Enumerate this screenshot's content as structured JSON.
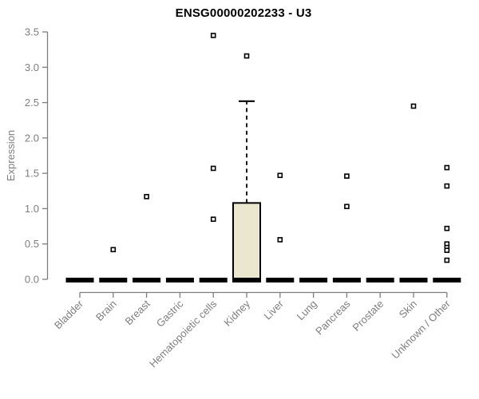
{
  "chart_data": {
    "type": "boxplot",
    "title": "ENSG00000202233 - U3",
    "ylabel": "Expression",
    "ylim": [
      0,
      3.5
    ],
    "yticks": [
      "0.0",
      "0.5",
      "1.0",
      "1.5",
      "2.0",
      "2.5",
      "3.0",
      "3.5"
    ],
    "categories": [
      "Bladder",
      "Brain",
      "Breast",
      "Gastric",
      "Hematopoietic cells",
      "Kidney",
      "Liver",
      "Lung",
      "Pancreas",
      "Prostate",
      "Skin",
      "Unknown / Other"
    ],
    "legend": "none",
    "grid": false,
    "colors": {
      "box_fill": "#EBE6CE",
      "box_border": "#000000",
      "axis": "#7e7e7e",
      "tick_label": "#7e7e7e",
      "title": "#000000",
      "outlier_fill": "#ffffff",
      "outlier_border": "#000000"
    },
    "boxes": [
      {
        "category": "Bladder",
        "q1": 0,
        "median": 0,
        "q3": 0,
        "whisker_low": 0,
        "whisker_high": 0,
        "outliers": []
      },
      {
        "category": "Brain",
        "q1": 0,
        "median": 0,
        "q3": 0,
        "whisker_low": 0,
        "whisker_high": 0,
        "outliers": [
          0.42
        ]
      },
      {
        "category": "Breast",
        "q1": 0,
        "median": 0,
        "q3": 0,
        "whisker_low": 0,
        "whisker_high": 0,
        "outliers": [
          1.17
        ]
      },
      {
        "category": "Gastric",
        "q1": 0,
        "median": 0,
        "q3": 0,
        "whisker_low": 0,
        "whisker_high": 0,
        "outliers": []
      },
      {
        "category": "Hematopoietic cells",
        "q1": 0,
        "median": 0,
        "q3": 0,
        "whisker_low": 0,
        "whisker_high": 0,
        "outliers": [
          3.45,
          1.57,
          0.85
        ]
      },
      {
        "category": "Kidney",
        "q1": 0,
        "median": 0,
        "q3": 1.08,
        "whisker_low": 0,
        "whisker_high": 2.52,
        "outliers": [
          3.16
        ]
      },
      {
        "category": "Liver",
        "q1": 0,
        "median": 0,
        "q3": 0,
        "whisker_low": 0,
        "whisker_high": 0,
        "outliers": [
          1.47,
          0.56
        ]
      },
      {
        "category": "Lung",
        "q1": 0,
        "median": 0,
        "q3": 0,
        "whisker_low": 0,
        "whisker_high": 0,
        "outliers": []
      },
      {
        "category": "Pancreas",
        "q1": 0,
        "median": 0,
        "q3": 0,
        "whisker_low": 0,
        "whisker_high": 0,
        "outliers": [
          1.46,
          1.03
        ]
      },
      {
        "category": "Prostate",
        "q1": 0,
        "median": 0,
        "q3": 0,
        "whisker_low": 0,
        "whisker_high": 0,
        "outliers": []
      },
      {
        "category": "Skin",
        "q1": 0,
        "median": 0,
        "q3": 0,
        "whisker_low": 0,
        "whisker_high": 0,
        "outliers": [
          2.45
        ]
      },
      {
        "category": "Unknown / Other",
        "q1": 0,
        "median": 0,
        "q3": 0,
        "whisker_low": 0,
        "whisker_high": 0,
        "outliers": [
          1.58,
          1.32,
          0.72,
          0.5,
          0.45,
          0.41,
          0.27
        ]
      }
    ]
  }
}
